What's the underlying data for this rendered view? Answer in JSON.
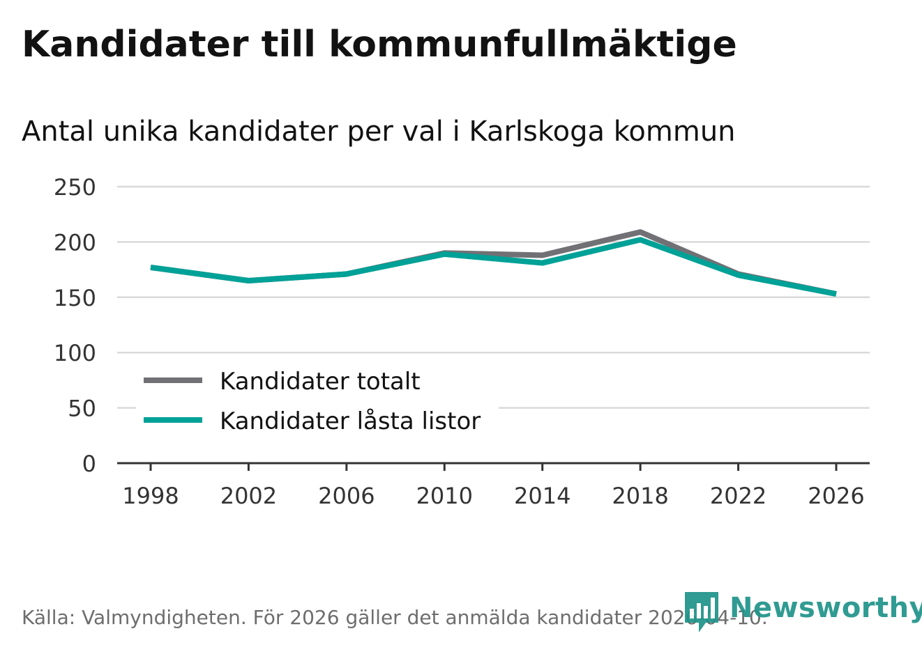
{
  "header": {
    "title": "Kandidater till kommunfullmäktige",
    "subtitle": "Antal unika kandidater per val i Karlskoga kommun"
  },
  "footer": {
    "source": "Källa: Valmyndigheten. För 2026 gäller det anmälda kandidater 2026-04-10.",
    "logo_text": "Newsworthy"
  },
  "colors": {
    "series_total": "#717175",
    "series_locked": "#00a197",
    "grid": "#d9d9d9",
    "axis": "#333333",
    "logo": "#1f9389"
  },
  "chart_data": {
    "type": "line",
    "title": "Kandidater till kommunfullmäktige",
    "subtitle": "Antal unika kandidater per val i Karlskoga kommun",
    "x": [
      1998,
      2002,
      2006,
      2010,
      2014,
      2018,
      2022,
      2026
    ],
    "x_tick_labels": [
      "1998",
      "2002",
      "2006",
      "2010",
      "2014",
      "2018",
      "2022",
      "2026"
    ],
    "y_ticks": [
      0,
      50,
      100,
      150,
      200,
      250
    ],
    "y_tick_labels": [
      "0",
      "50",
      "100",
      "150",
      "200",
      "250"
    ],
    "ylim": [
      0,
      250
    ],
    "grid": true,
    "legend_position": "bottom-left",
    "series": [
      {
        "name": "Kandidater totalt",
        "values": [
          177,
          165,
          171,
          190,
          188,
          209,
          171,
          153
        ]
      },
      {
        "name": "Kandidater låsta listor",
        "values": [
          177,
          165,
          171,
          189,
          181,
          202,
          170,
          153
        ]
      }
    ]
  }
}
